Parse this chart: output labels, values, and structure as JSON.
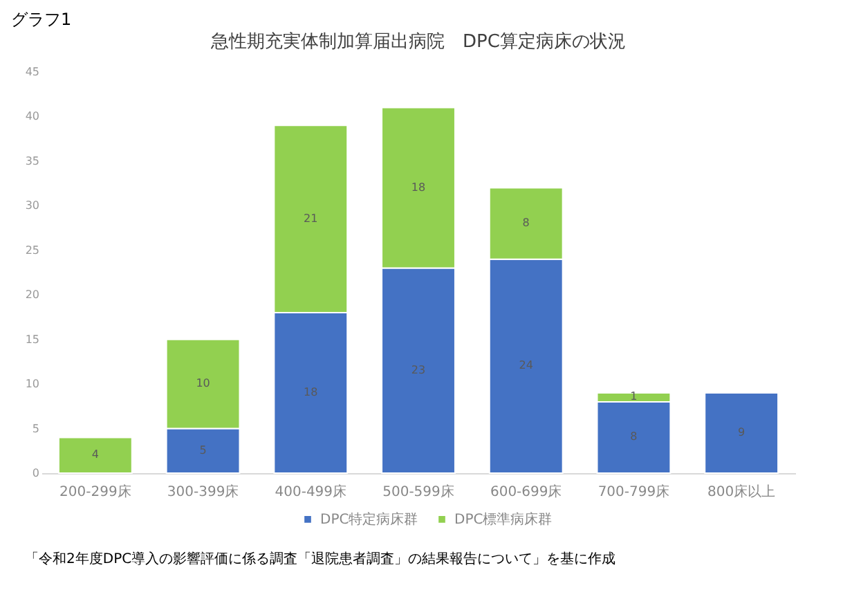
{
  "chart_data": {
    "type": "bar",
    "title": "急性期充実体制加算届出病院　DPC算定病床の状況",
    "annotations": [
      "グラフ1",
      "「令和2年度DPC導入の影響評価に係る調査「退院患者調査」の結果報告について」を基に作成"
    ],
    "categories": [
      "200-299床",
      "300-399床",
      "400-499床",
      "500-599床",
      "600-699床",
      "700-799床",
      "800床以上"
    ],
    "stacked": true,
    "series": [
      {
        "name": "DPC特定病床群",
        "color": "#4472c4",
        "values": [
          null,
          5,
          18,
          23,
          24,
          8,
          9
        ]
      },
      {
        "name": "DPC標準病床群",
        "color": "#92d050",
        "values": [
          4,
          10,
          21,
          18,
          8,
          1,
          null
        ]
      }
    ],
    "ylim": [
      0,
      45
    ],
    "yticks": [
      0,
      5,
      10,
      15,
      20,
      25,
      30,
      35,
      40,
      45
    ],
    "grid": false,
    "legend": "bottom",
    "data_labels": true
  }
}
